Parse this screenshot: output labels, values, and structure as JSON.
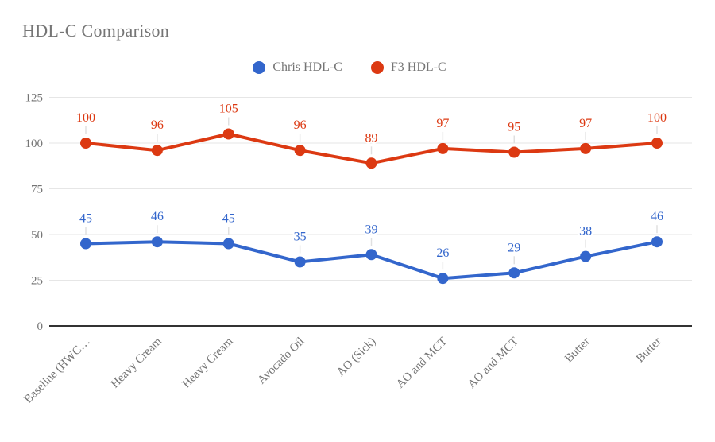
{
  "chart_data": {
    "type": "line",
    "title": "HDL-C Comparison",
    "categories": [
      "Baseline (HWC…",
      "Heavy Cream",
      "Heavy Cream",
      "Avocado Oil",
      "AO (Sick)",
      "AO and MCT",
      "AO and MCT",
      "Butter",
      "Butter"
    ],
    "series": [
      {
        "name": "Chris HDL-C",
        "color": "#3366CC",
        "values": [
          45,
          46,
          45,
          35,
          39,
          26,
          29,
          38,
          46
        ]
      },
      {
        "name": "F3 HDL-C",
        "color": "#DC3912",
        "values": [
          100,
          96,
          105,
          96,
          89,
          97,
          95,
          97,
          100
        ]
      }
    ],
    "y_ticks": [
      0,
      25,
      50,
      75,
      100,
      125
    ],
    "ylim": [
      0,
      125
    ],
    "xlabel": "",
    "ylabel": "",
    "grid": true,
    "legend_position": "top",
    "point_labels": true,
    "title_color": "#757575",
    "axis_text_color": "#757575",
    "gridline_color": "#e6e6e6",
    "baseline_color": "#333333",
    "stem_color": "#e0e0e0",
    "background_color": "#ffffff"
  }
}
